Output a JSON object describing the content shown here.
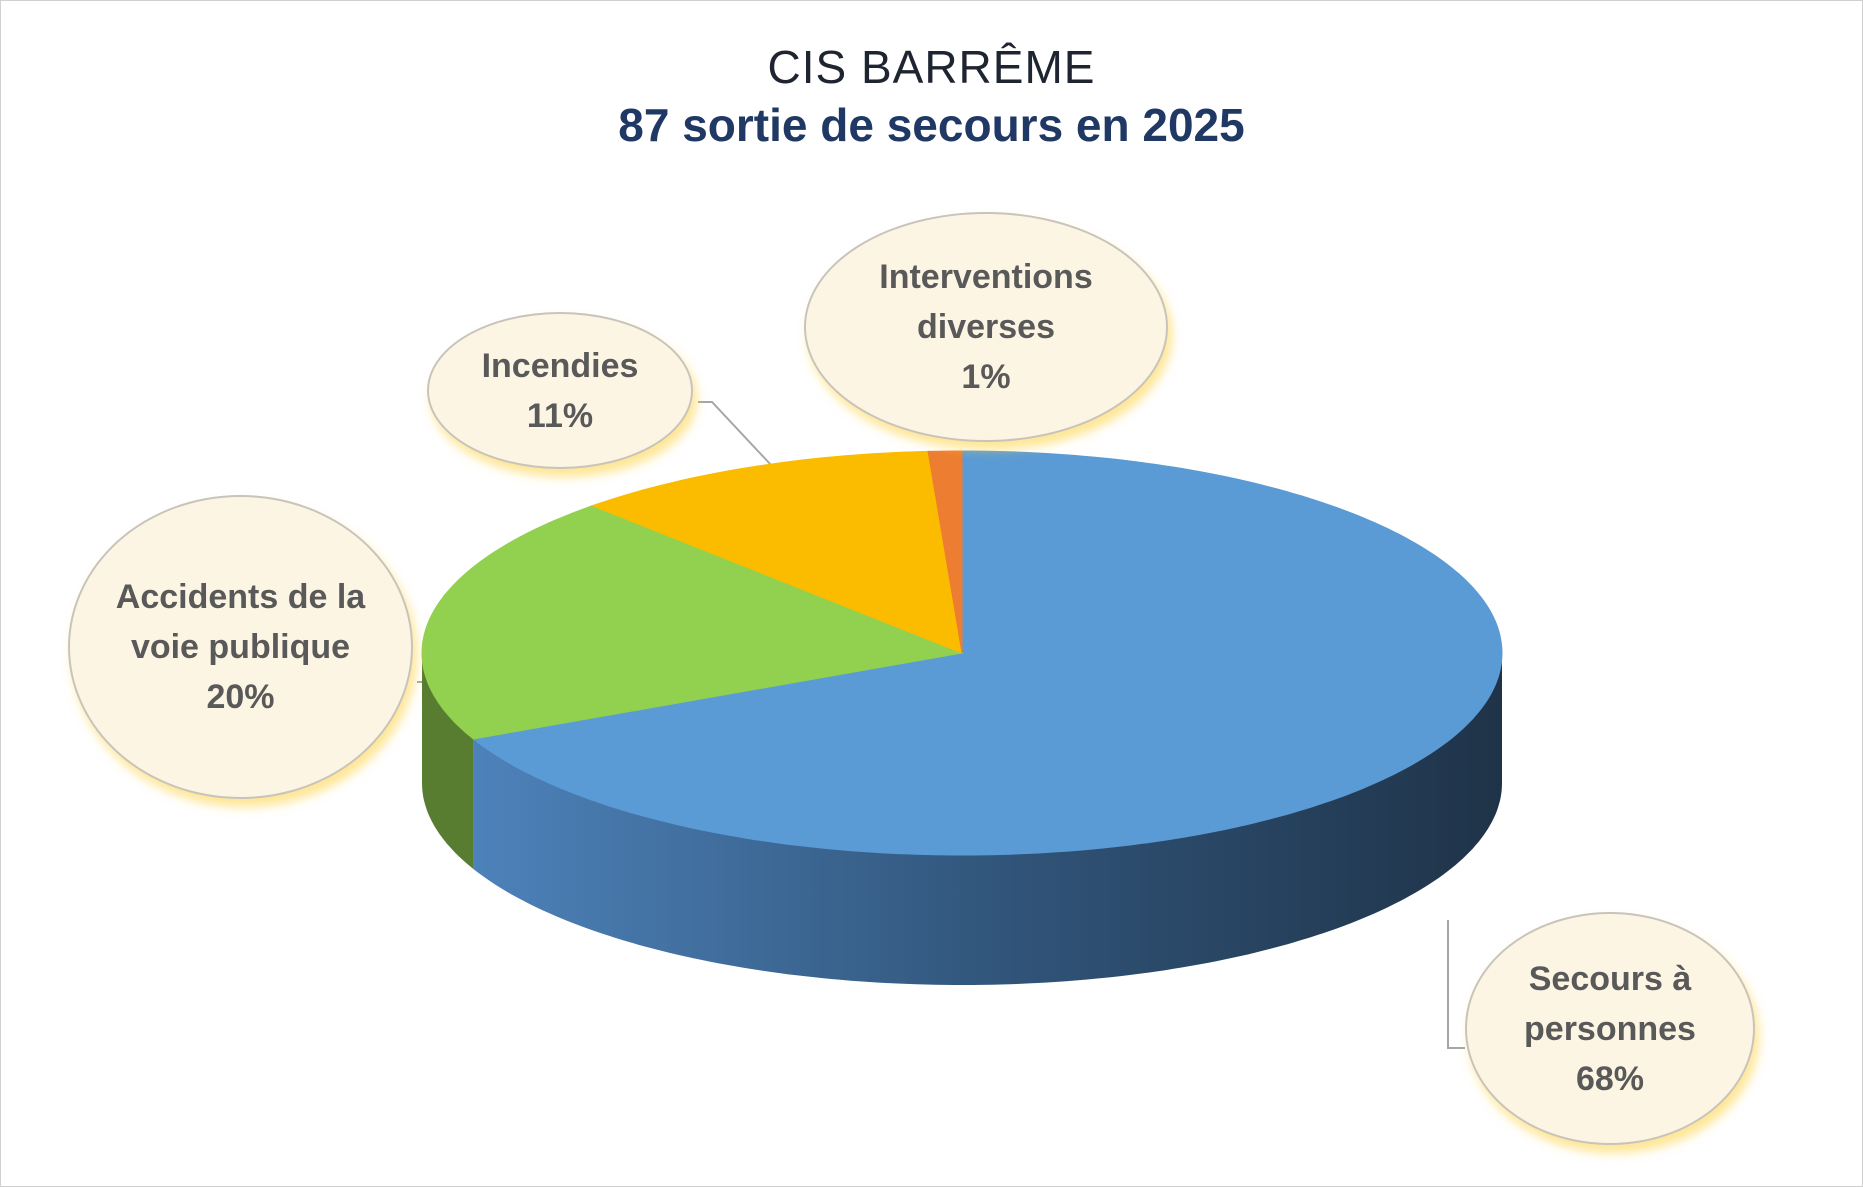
{
  "chart_data": {
    "type": "pie3d",
    "title": "CIS BARRÊME",
    "subtitle": "87 sortie de secours en 2025",
    "categories": [
      "Secours à personnes",
      "Accidents de la voie publique",
      "Incendies",
      "Interventions diverses"
    ],
    "values": [
      68,
      20,
      11,
      1
    ],
    "value_labels": [
      "68%",
      "20%",
      "11%",
      "1%"
    ],
    "colors": [
      "#5b9bd5",
      "#92d050",
      "#fbbc00",
      "#ed7d31"
    ]
  }
}
